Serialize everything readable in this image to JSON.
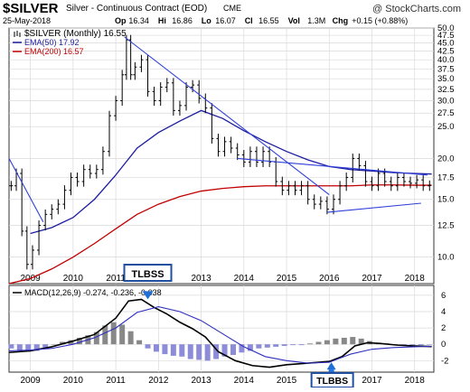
{
  "header": {
    "symbol": "$SILVER",
    "description": "Silver - Continuous Contract (EOD)",
    "exchange": "CME",
    "date": "25-May-2018",
    "ohlc": [
      {
        "label": "Op",
        "value": "16.34"
      },
      {
        "label": "Hi",
        "value": "16.86"
      },
      {
        "label": "Lo",
        "value": "16.07"
      },
      {
        "label": "Cl",
        "value": "16.55"
      },
      {
        "label": "Vol",
        "value": "1.3M"
      },
      {
        "label": "Chg",
        "value": "+0.15 (+0.88%)"
      }
    ],
    "watermark": "@ StockCharts.com"
  },
  "colors": {
    "price": "#000000",
    "ema50": "#1c1ca0",
    "ema200": "#c00000",
    "trendline": "#2f3fd8",
    "macd_line": "#000000",
    "signal_line": "#3030c0",
    "hist_pos": "#888888",
    "hist_neg": "#8c8cd8",
    "grid": "#d9d9d9",
    "annotation_box": "#1f4f9f",
    "arrow": "#1f6fd8"
  },
  "chart_data": [
    {
      "type": "line",
      "panel": "price",
      "legend": [
        {
          "name": "$SILVER (Monthly) 16.55",
          "color": "#000000",
          "style": "bars"
        },
        {
          "name": "EMA(50) 17.92",
          "color": "#1c1ca0",
          "style": "line"
        },
        {
          "name": "EMA(200) 16.57",
          "color": "#c00000",
          "style": "line"
        }
      ],
      "scale": "log",
      "ylim": [
        8.3,
        50
      ],
      "y_ticks": [
        10,
        12.5,
        15,
        17.5,
        20,
        25,
        27.5,
        30,
        32.5,
        35,
        37.5,
        40,
        42.5,
        45,
        47.5,
        50
      ],
      "x_range": [
        2008.5,
        2018.45
      ],
      "x_ticks": [
        {
          "label": "2009",
          "x": 2009.0
        },
        {
          "label": "2010",
          "x": 2010.0
        },
        {
          "label": "2011",
          "x": 2011.0
        },
        {
          "label": "2013",
          "x": 2013.0
        },
        {
          "label": "2014",
          "x": 2014.0
        },
        {
          "label": "2015",
          "x": 2015.0
        },
        {
          "label": "2016",
          "x": 2016.0
        },
        {
          "label": "2017",
          "x": 2017.0
        },
        {
          "label": "2018",
          "x": 2018.0
        }
      ],
      "series": [
        {
          "name": "$SILVER (Monthly)",
          "x": [
            2008.55,
            2008.67,
            2008.8,
            2008.92,
            2009.05,
            2009.2,
            2009.35,
            2009.5,
            2009.65,
            2009.8,
            2009.95,
            2010.1,
            2010.25,
            2010.4,
            2010.55,
            2010.7,
            2010.85,
            2011.0,
            2011.15,
            2011.25,
            2011.35,
            2011.45,
            2011.6,
            2011.75,
            2011.9,
            2012.05,
            2012.2,
            2012.35,
            2012.5,
            2012.65,
            2012.8,
            2012.95,
            2013.1,
            2013.25,
            2013.4,
            2013.55,
            2013.7,
            2013.85,
            2014.0,
            2014.15,
            2014.3,
            2014.45,
            2014.6,
            2014.75,
            2014.9,
            2015.05,
            2015.2,
            2015.35,
            2015.5,
            2015.65,
            2015.8,
            2015.95,
            2016.1,
            2016.25,
            2016.4,
            2016.55,
            2016.7,
            2016.85,
            2017.0,
            2017.15,
            2017.3,
            2017.45,
            2017.6,
            2017.75,
            2017.9,
            2018.05,
            2018.2,
            2018.35
          ],
          "values": [
            16.5,
            18.0,
            12.0,
            9.5,
            10.5,
            12.5,
            13.5,
            14.0,
            14.5,
            16.0,
            17.5,
            17.0,
            18.5,
            18.0,
            18.5,
            21.0,
            27.0,
            30.0,
            36.0,
            46.0,
            36.0,
            38.0,
            40.0,
            32.0,
            30.0,
            33.0,
            34.0,
            28.0,
            29.0,
            33.0,
            33.5,
            30.5,
            28.5,
            23.0,
            21.0,
            22.5,
            21.5,
            20.5,
            19.5,
            21.0,
            19.5,
            21.0,
            19.5,
            17.0,
            16.0,
            16.5,
            16.0,
            16.5,
            15.0,
            14.5,
            14.8,
            14.0,
            15.0,
            16.5,
            17.5,
            20.0,
            19.0,
            17.0,
            16.5,
            18.0,
            17.0,
            16.5,
            17.5,
            17.0,
            16.8,
            17.2,
            16.5,
            16.55
          ]
        },
        {
          "name": "EMA(50)",
          "x": [
            2009.0,
            2009.5,
            2010.0,
            2010.5,
            2011.0,
            2011.5,
            2012.0,
            2012.5,
            2013.0,
            2013.5,
            2014.0,
            2014.5,
            2015.0,
            2015.5,
            2016.0,
            2016.5,
            2017.0,
            2017.5,
            2018.0,
            2018.4
          ],
          "values": [
            11.8,
            12.3,
            13.2,
            15.0,
            17.8,
            21.5,
            24.0,
            26.0,
            28.0,
            26.5,
            24.3,
            22.5,
            21.0,
            19.8,
            18.9,
            18.5,
            18.3,
            18.1,
            18.0,
            17.92
          ]
        },
        {
          "name": "EMA(200)",
          "x": [
            2008.5,
            2009.0,
            2009.5,
            2010.0,
            2010.5,
            2011.0,
            2011.5,
            2012.0,
            2012.5,
            2013.0,
            2013.5,
            2014.0,
            2014.5,
            2015.0,
            2015.5,
            2016.0,
            2016.5,
            2017.0,
            2017.5,
            2018.0,
            2018.4
          ],
          "values": [
            8.3,
            8.6,
            9.2,
            10.0,
            11.0,
            12.2,
            13.5,
            14.5,
            15.3,
            15.9,
            16.2,
            16.4,
            16.5,
            16.5,
            16.5,
            16.5,
            16.5,
            16.6,
            16.6,
            16.57,
            16.57
          ]
        }
      ],
      "trendlines": [
        {
          "x": [
            2008.5,
            2009.3
          ],
          "values": [
            20.0,
            12.8
          ]
        },
        {
          "x": [
            2011.2,
            2016.0
          ],
          "values": [
            47.0,
            15.5
          ]
        },
        {
          "x": [
            2013.85,
            2018.3
          ],
          "values": [
            20.0,
            17.8
          ]
        },
        {
          "x": [
            2015.95,
            2018.15
          ],
          "values": [
            13.7,
            14.6
          ]
        }
      ]
    },
    {
      "type": "line",
      "panel": "macd",
      "legend": [
        {
          "name": "MACD(12,26,9) -0.274, -0.236, -0.038",
          "color": "#000000"
        }
      ],
      "ylim": [
        -3.4,
        7.2
      ],
      "y_ticks": [
        -2,
        0,
        2,
        4,
        6
      ],
      "x_range": [
        2008.5,
        2018.45
      ],
      "x_ticks": [
        {
          "label": "2009",
          "x": 2009.0
        },
        {
          "label": "2010",
          "x": 2010.0
        },
        {
          "label": "2011",
          "x": 2011.0
        },
        {
          "label": "2012",
          "x": 2012.0
        },
        {
          "label": "2013",
          "x": 2013.0
        },
        {
          "label": "2014",
          "x": 2014.0
        },
        {
          "label": "2015",
          "x": 2015.0
        },
        {
          "label": "2016",
          "x": 2016.0
        },
        {
          "label": "2017",
          "x": 2017.0
        },
        {
          "label": "2018",
          "x": 2018.0
        }
      ],
      "series": [
        {
          "name": "MACD",
          "x": [
            2008.5,
            2009.0,
            2009.5,
            2010.0,
            2010.5,
            2011.0,
            2011.3,
            2011.6,
            2011.9,
            2012.2,
            2012.5,
            2012.8,
            2013.1,
            2013.4,
            2013.8,
            2014.2,
            2014.6,
            2015.0,
            2015.5,
            2016.0,
            2016.3,
            2016.6,
            2016.9,
            2017.2,
            2017.6,
            2018.0,
            2018.4
          ],
          "values": [
            -1.0,
            -0.8,
            -0.3,
            0.4,
            1.2,
            3.2,
            5.3,
            5.5,
            4.5,
            3.7,
            2.7,
            1.9,
            0.9,
            -0.9,
            -2.0,
            -2.6,
            -2.8,
            -2.5,
            -2.3,
            -2.1,
            -1.5,
            -0.2,
            0.2,
            0.1,
            -0.1,
            -0.2,
            -0.27
          ]
        },
        {
          "name": "Signal",
          "x": [
            2008.5,
            2009.0,
            2009.5,
            2010.0,
            2010.5,
            2011.0,
            2011.5,
            2012.0,
            2012.5,
            2013.0,
            2013.5,
            2014.0,
            2014.5,
            2015.0,
            2015.5,
            2016.0,
            2016.5,
            2017.0,
            2017.5,
            2018.0,
            2018.4
          ],
          "values": [
            -0.8,
            -0.7,
            -0.5,
            0.0,
            0.8,
            2.0,
            3.9,
            4.6,
            4.0,
            2.9,
            1.3,
            -0.3,
            -1.5,
            -2.0,
            -2.3,
            -2.2,
            -1.2,
            -0.6,
            -0.4,
            -0.3,
            -0.24
          ]
        }
      ],
      "histogram": {
        "x": [
          2008.55,
          2008.75,
          2008.95,
          2009.15,
          2009.35,
          2009.55,
          2009.75,
          2009.95,
          2010.15,
          2010.35,
          2010.55,
          2010.75,
          2010.95,
          2011.15,
          2011.35,
          2011.55,
          2011.75,
          2011.95,
          2012.15,
          2012.35,
          2012.55,
          2012.75,
          2012.95,
          2013.15,
          2013.35,
          2013.55,
          2013.75,
          2013.95,
          2014.15,
          2014.35,
          2014.55,
          2014.75,
          2014.95,
          2015.15,
          2015.35,
          2015.55,
          2015.75,
          2015.95,
          2016.15,
          2016.35,
          2016.55,
          2016.75,
          2016.95,
          2017.15,
          2017.35,
          2017.55,
          2017.75,
          2017.95,
          2018.15,
          2018.35
        ],
        "values": [
          -0.5,
          -0.7,
          -0.9,
          -0.8,
          -0.4,
          0.0,
          0.3,
          0.5,
          0.8,
          1.1,
          1.5,
          2.3,
          2.7,
          2.4,
          1.6,
          0.5,
          -0.5,
          -0.9,
          -1.2,
          -1.4,
          -1.5,
          -1.8,
          -1.9,
          -2.0,
          -1.8,
          -1.5,
          -1.3,
          -1.0,
          -0.8,
          -0.5,
          -0.4,
          -0.3,
          -0.2,
          -0.1,
          -0.1,
          0.1,
          0.3,
          0.5,
          0.7,
          0.8,
          0.9,
          0.7,
          0.4,
          0.2,
          0.1,
          0.0,
          -0.1,
          -0.1,
          -0.1,
          -0.04
        ]
      },
      "annotations": [
        {
          "text": "TLBSS",
          "x": 2011.75,
          "target_value": 5.5,
          "direction": "down"
        },
        {
          "text": "TLBBS",
          "x": 2016.05,
          "target_value": -2.2,
          "direction": "up"
        }
      ]
    }
  ]
}
